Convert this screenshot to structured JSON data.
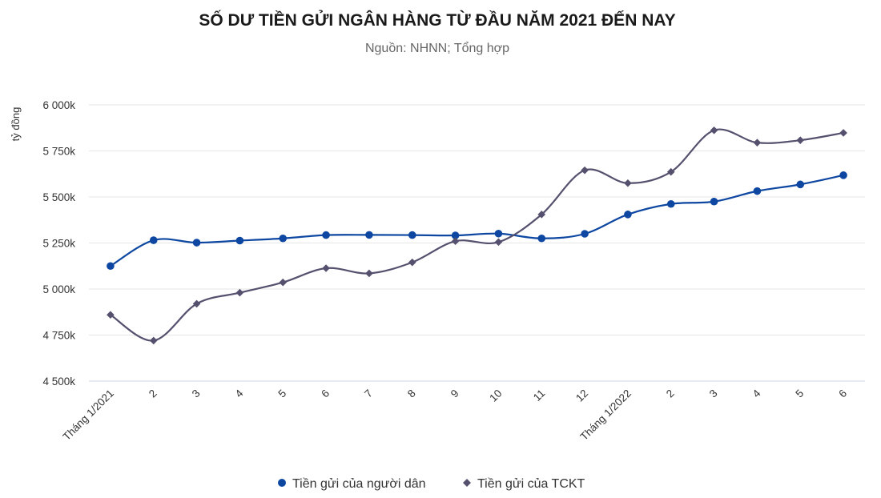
{
  "colors": {
    "series1": "#0d47a1",
    "series2": "#55506e",
    "grid": "#e6e6e6",
    "axis": "#ccd6eb"
  },
  "chart_data": {
    "type": "line",
    "title": "SỐ DƯ TIỀN GỬI NGÂN HÀNG TỪ ĐẦU NĂM 2021 ĐẾN NAY",
    "subtitle": "Nguồn: NHNN; Tổng hợp",
    "ylabel": "tỷ đồng",
    "xlabel": "",
    "categories": [
      "Tháng 1/2021",
      "2",
      "3",
      "4",
      "5",
      "6",
      "7",
      "8",
      "9",
      "10",
      "11",
      "12",
      "Tháng 1/2022",
      "2",
      "3",
      "4",
      "5",
      "6"
    ],
    "ylim": [
      4500,
      6000
    ],
    "yticks": [
      4500,
      4750,
      5000,
      5250,
      5500,
      5750,
      6000
    ],
    "ytick_labels": [
      "4 500k",
      "4 750k",
      "5 000k",
      "5 250k",
      "5 500k",
      "5 750k",
      "6 000k"
    ],
    "grid": true,
    "legend_position": "bottom-center",
    "series": [
      {
        "name": "Tiền gửi của người dân",
        "marker": "circle",
        "values": [
          5125,
          5265,
          5252,
          5263,
          5275,
          5293,
          5294,
          5293,
          5291,
          5301,
          5275,
          5300,
          5405,
          5462,
          5475,
          5532,
          5568,
          5618
        ]
      },
      {
        "name": "Tiền gửi của TCKT",
        "marker": "diamond",
        "values": [
          4860,
          4720,
          4920,
          4980,
          5036,
          5113,
          5085,
          5145,
          5260,
          5255,
          5405,
          5645,
          5575,
          5636,
          5862,
          5795,
          5808,
          5848
        ]
      }
    ]
  }
}
